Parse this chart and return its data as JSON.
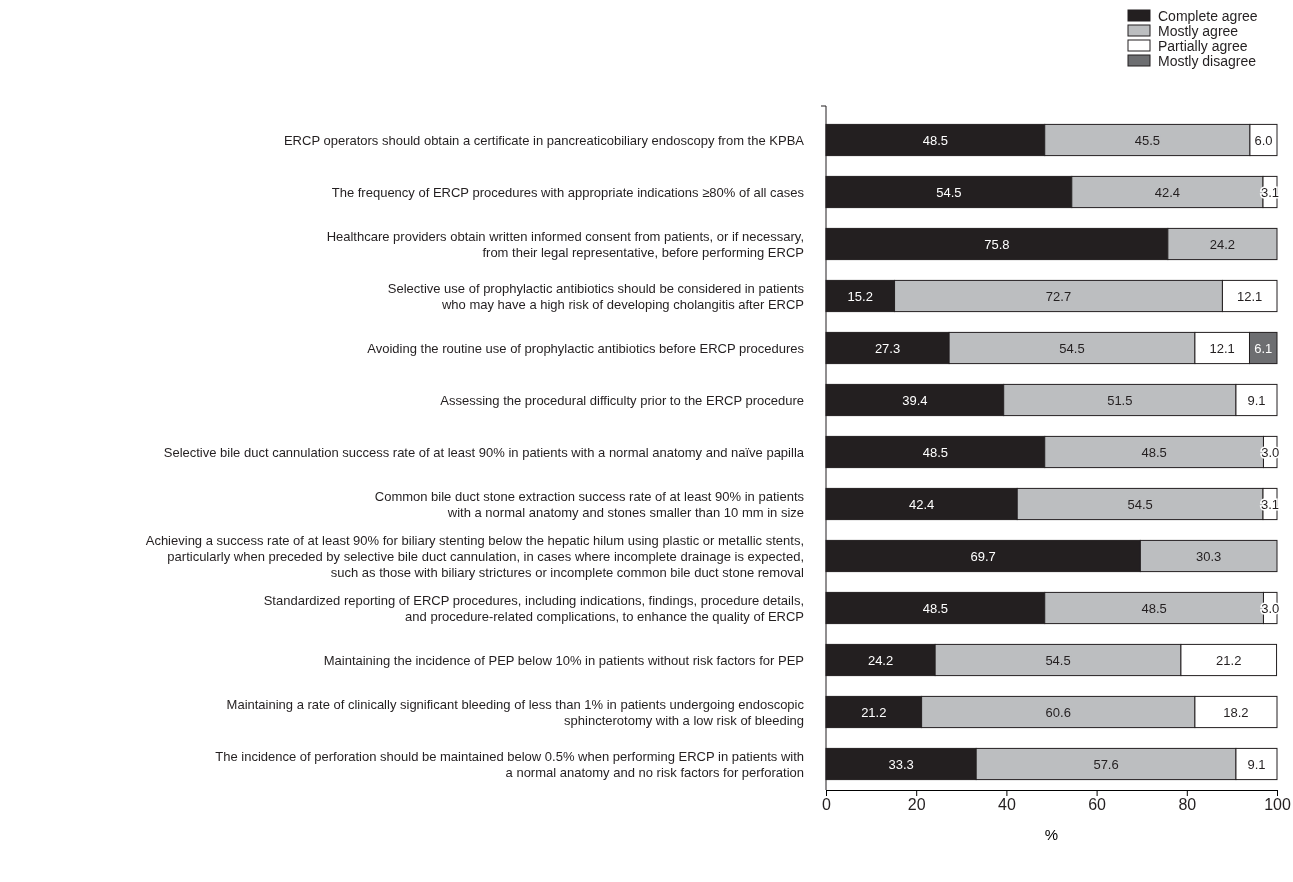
{
  "chart_data": {
    "type": "bar",
    "orientation": "horizontal",
    "stacked": true,
    "xlabel": "%",
    "xlim": [
      0,
      100
    ],
    "xticks": [
      0,
      20,
      40,
      60,
      80,
      100
    ],
    "legend": "top right",
    "grid": false,
    "categories": [
      "ERCP operators should obtain a certificate in pancreaticobiliary endoscopy from the KPBA",
      "The frequency of ERCP procedures with appropriate indications ≥80% of all cases",
      "Healthcare providers obtain written informed consent from patients, or if necessary,\nfrom their legal representative, before performing ERCP",
      "Selective use of prophylactic antibiotics should be considered in patients\nwho may have a high risk of developing cholangitis after ERCP",
      "Avoiding the routine use of prophylactic antibiotics before ERCP procedures",
      "Assessing the procedural difficulty prior to the ERCP procedure",
      "Selective bile duct cannulation success rate of at least 90% in patients with a normal anatomy and naïve papilla",
      "Common bile duct stone extraction success rate of at least 90% in patients\nwith a normal anatomy and stones smaller than 10 mm in size",
      "Achieving a success rate of at least 90% for biliary stenting below the hepatic hilum using plastic or metallic stents,\nparticularly when preceded by selective bile duct cannulation, in cases where incomplete drainage is expected,\nsuch as those with biliary strictures or incomplete common bile duct stone removal",
      "Standardized reporting of ERCP procedures, including indications, findings, procedure details,\nand procedure-related complications, to enhance the quality of ERCP",
      "Maintaining the incidence of PEP below 10% in patients without risk factors for PEP",
      "Maintaining a rate of clinically significant bleeding of less than 1% in patients undergoing endoscopic\nsphincterotomy with a low risk of bleeding",
      "The incidence of perforation should be maintained below 0.5% when performing ERCP in patients with\na normal anatomy and no risk factors for perforation"
    ],
    "series": [
      {
        "name": "Complete agree",
        "color": "#231f20",
        "values": [
          48.5,
          54.5,
          75.8,
          15.2,
          27.3,
          39.4,
          48.5,
          42.4,
          69.7,
          48.5,
          24.2,
          21.2,
          33.3
        ],
        "value_labels": [
          "48.5",
          "54.5",
          "75.8",
          "15.2",
          "27.3",
          "39.4",
          "48.5",
          "42.4",
          "69.7",
          "48.5",
          "24.2",
          "21.2",
          "33.3"
        ]
      },
      {
        "name": "Mostly agree",
        "color": "#bcbec0",
        "values": [
          45.5,
          42.4,
          24.2,
          72.7,
          54.5,
          51.5,
          48.5,
          54.5,
          30.3,
          48.5,
          54.5,
          60.6,
          57.6
        ],
        "value_labels": [
          "45.5",
          "42.4",
          "24.2",
          "72.7",
          "54.5",
          "51.5",
          "48.5",
          "54.5",
          "30.3",
          "48.5",
          "54.5",
          "60.6",
          "57.6"
        ]
      },
      {
        "name": "Partially agree",
        "color": "#ffffff",
        "values": [
          6.0,
          3.1,
          null,
          12.1,
          12.1,
          9.1,
          3.0,
          3.1,
          null,
          3.0,
          21.2,
          18.2,
          9.1
        ],
        "value_labels": [
          "6.0",
          "3.1",
          null,
          "12.1",
          "12.1",
          "9.1",
          "3.0",
          "3.1",
          null,
          "3.0",
          "21.2",
          "18.2",
          "9.1"
        ]
      },
      {
        "name": "Mostly disagree",
        "color": "#6d6e71",
        "values": [
          null,
          null,
          null,
          null,
          6.1,
          null,
          null,
          null,
          null,
          null,
          null,
          null,
          null
        ],
        "value_labels": [
          null,
          null,
          null,
          null,
          "6.1",
          null,
          null,
          null,
          null,
          null,
          null,
          null,
          null
        ]
      }
    ]
  }
}
